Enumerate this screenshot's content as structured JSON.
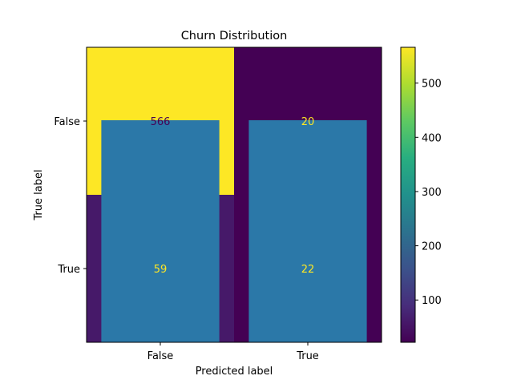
{
  "chart_data": {
    "type": "heatmap",
    "title": "Churn Distribution",
    "xlabel": "Predicted label",
    "ylabel": "True label",
    "x_categories": [
      "False",
      "True"
    ],
    "y_categories": [
      "False",
      "True"
    ],
    "values": [
      [
        566,
        20
      ],
      [
        59,
        22
      ]
    ],
    "colormap": "viridis",
    "colorbar": {
      "min": 22,
      "max": 566,
      "ticks": [
        100,
        200,
        300,
        400,
        500
      ]
    },
    "overlay_bars": {
      "color": "#2b78a8",
      "categories": [
        "False",
        "True"
      ],
      "values": [
        1.5,
        1.5
      ],
      "ylim": [
        -0.5,
        1.5
      ],
      "note": "bars drawn over the matrix, spanning from the bottom edge"
    }
  }
}
